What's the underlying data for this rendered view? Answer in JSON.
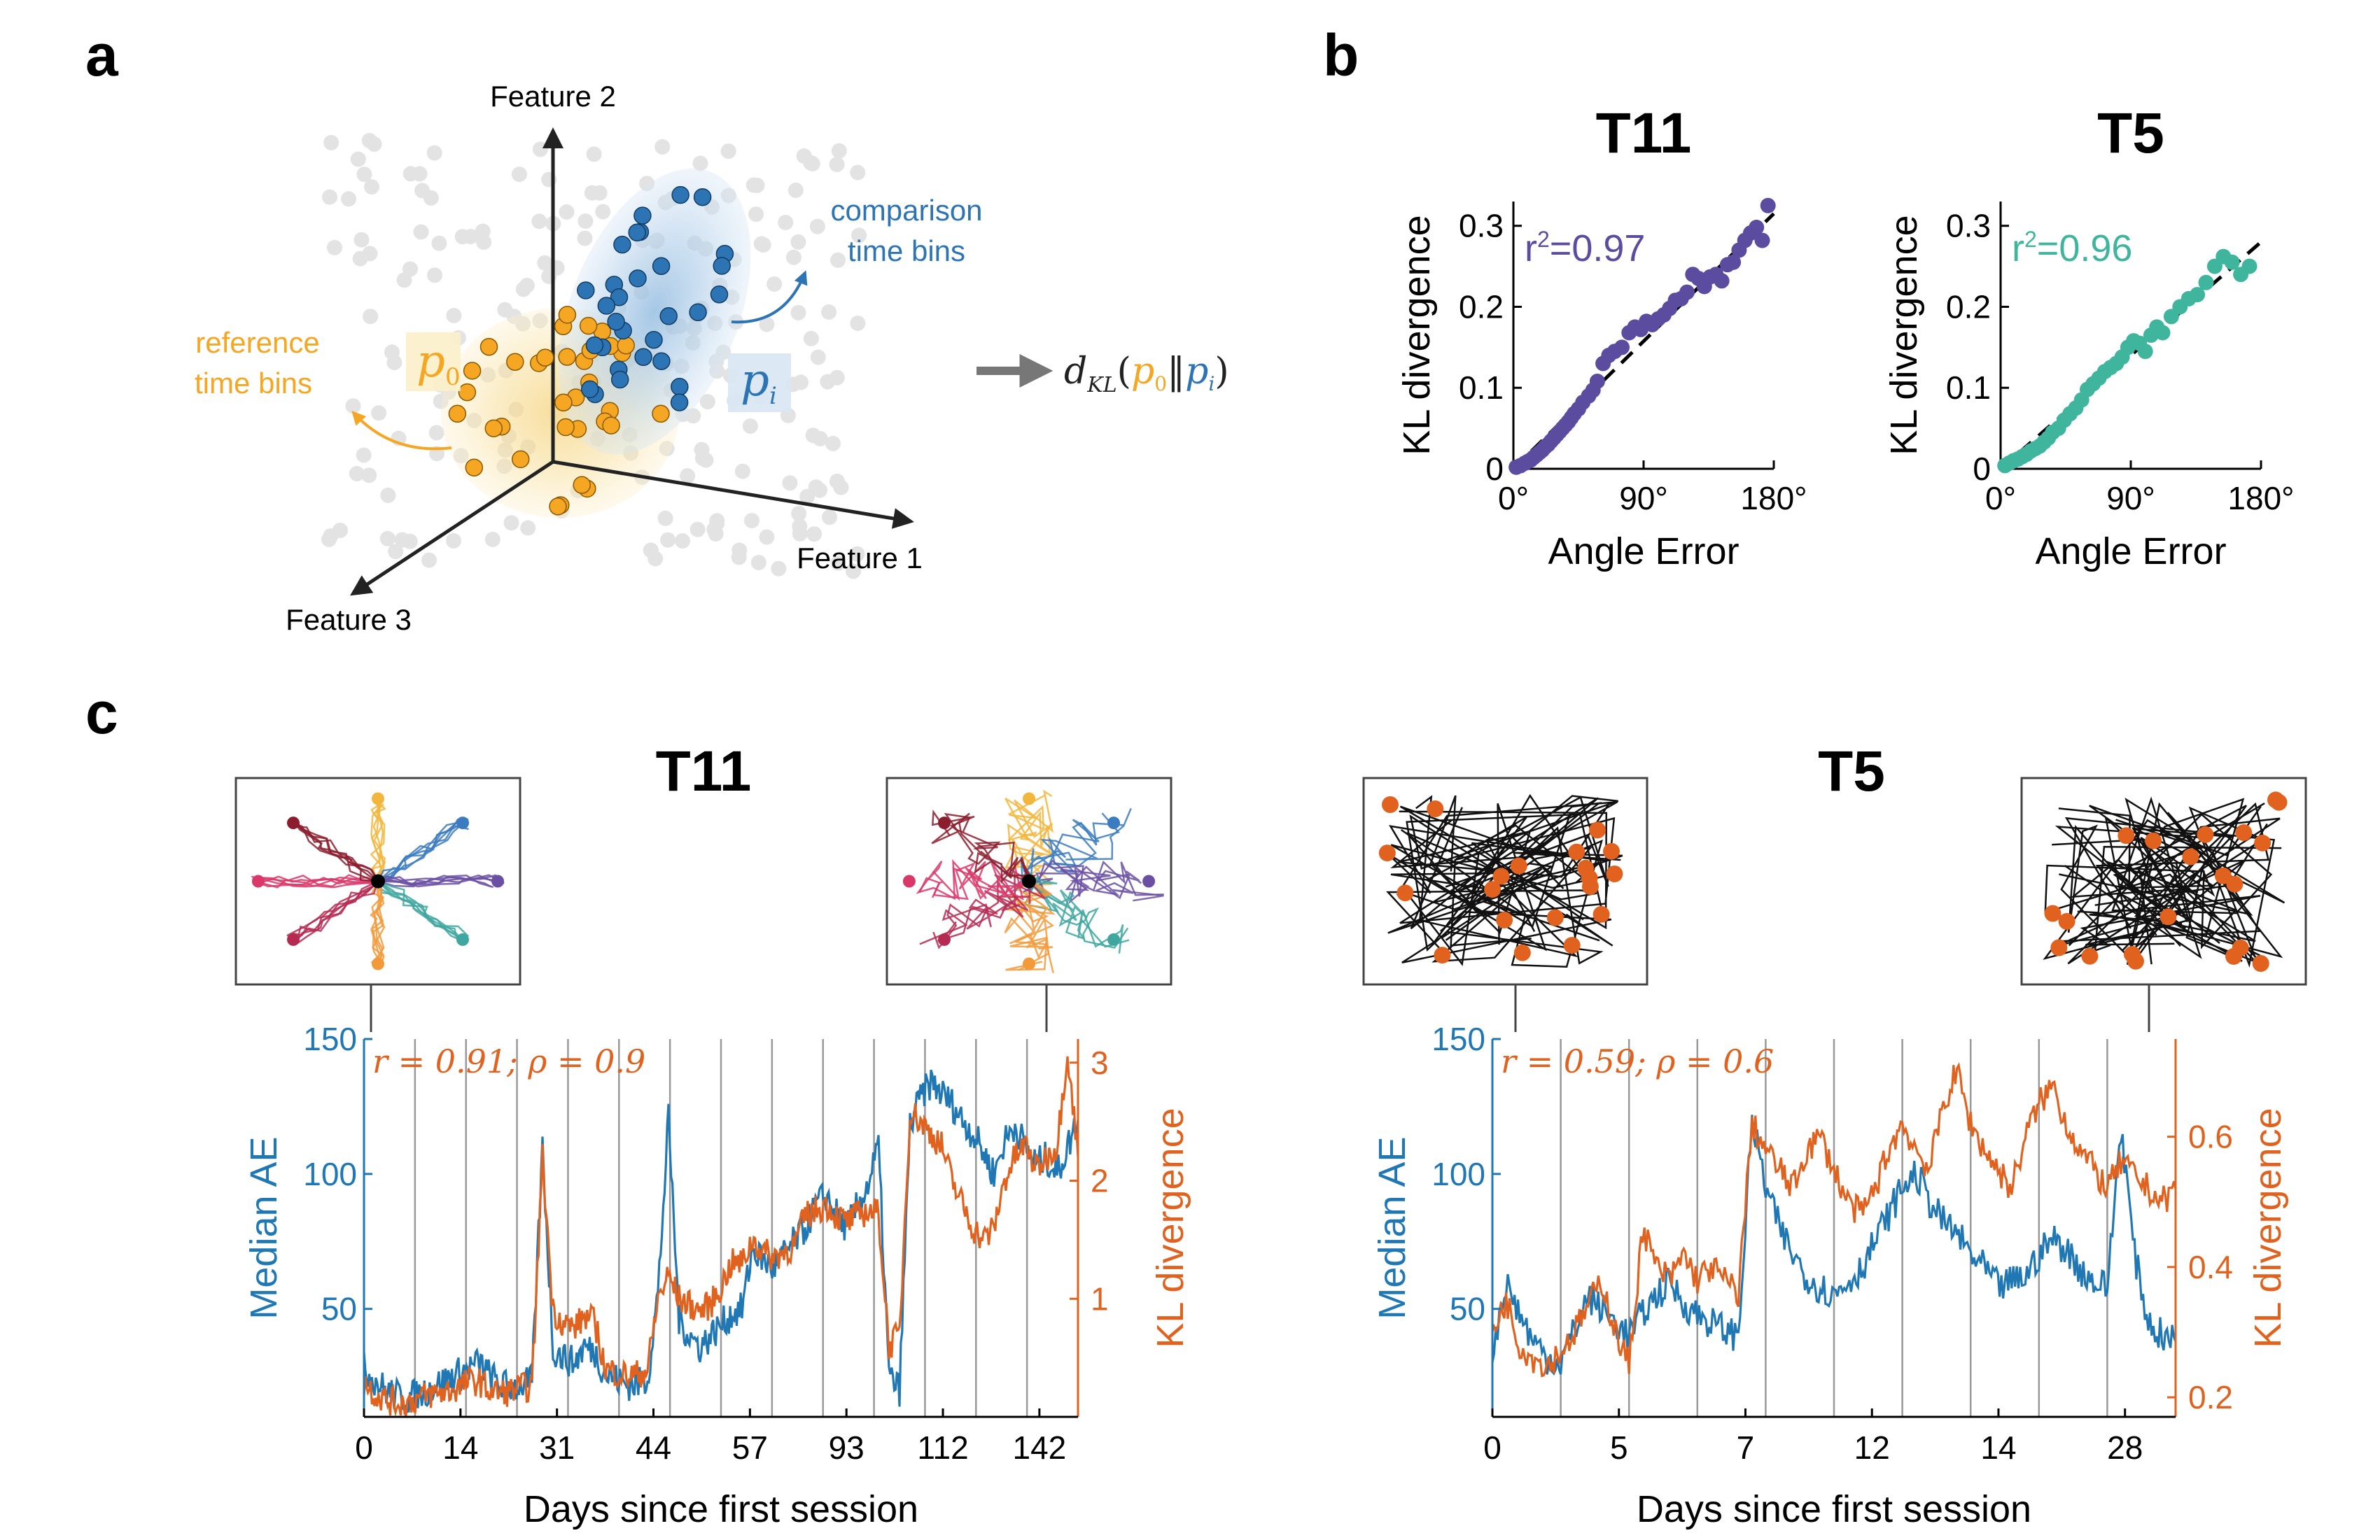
{
  "panel_labels": {
    "a": "a",
    "b": "b",
    "c": "c"
  },
  "panel_a": {
    "feature_1": "Feature 1",
    "feature_2": "Feature 2",
    "feature_3": "Feature 3",
    "reference_line1": "reference",
    "reference_line2": "time bins",
    "comparison_line1": "comparison",
    "comparison_line2": "time bins",
    "p0_symbol": "p",
    "p0_subscript": "0",
    "pi_symbol": "p",
    "pi_subscript": "i",
    "formula": {
      "d": "d",
      "sub": "KL",
      "open": "(",
      "p0": "p",
      "p0_sub": "0",
      "sep": "‖",
      "pi": "p",
      "pi_sub": "i",
      "close": ")"
    },
    "colors": {
      "reference": "#F5A623",
      "comparison": "#2D74B5",
      "background": "#E3E3E3",
      "arrow": "#777777"
    }
  },
  "chart_data": [
    {
      "type": "scatter",
      "panel": "b",
      "title": "T11",
      "xlabel": "Angle Error",
      "ylabel": "KL divergence",
      "xlim": [
        0,
        180
      ],
      "ylim": [
        0,
        0.33
      ],
      "xticks": [
        "0°",
        "90°",
        "180°"
      ],
      "yticks": [
        "0",
        "0.1",
        "0.2",
        "0.3"
      ],
      "annotation": {
        "prefix": "r",
        "sup": "2",
        "value": "=0.97"
      },
      "color": "#5B4CA0",
      "fit_line": {
        "x": [
          0,
          180
        ],
        "y": [
          0,
          0.315
        ]
      },
      "x": [
        2,
        5,
        8,
        10,
        12,
        14,
        16,
        18,
        20,
        22,
        24,
        26,
        28,
        30,
        32,
        34,
        36,
        38,
        40,
        42,
        45,
        48,
        52,
        55,
        58,
        62,
        66,
        70,
        75,
        80,
        84,
        88,
        92,
        96,
        100,
        104,
        108,
        112,
        116,
        120,
        124,
        128,
        132,
        136,
        140,
        144,
        148,
        152,
        156,
        160,
        164,
        168,
        172,
        176
      ],
      "y": [
        0.002,
        0.004,
        0.007,
        0.009,
        0.011,
        0.014,
        0.017,
        0.02,
        0.023,
        0.027,
        0.03,
        0.034,
        0.038,
        0.042,
        0.046,
        0.05,
        0.054,
        0.058,
        0.063,
        0.068,
        0.074,
        0.082,
        0.09,
        0.097,
        0.108,
        0.13,
        0.14,
        0.145,
        0.15,
        0.168,
        0.175,
        0.172,
        0.182,
        0.178,
        0.185,
        0.19,
        0.198,
        0.208,
        0.21,
        0.218,
        0.24,
        0.235,
        0.225,
        0.237,
        0.24,
        0.232,
        0.252,
        0.255,
        0.27,
        0.282,
        0.291,
        0.298,
        0.282,
        0.325
      ]
    },
    {
      "type": "scatter",
      "panel": "b",
      "title": "T5",
      "xlabel": "Angle Error",
      "ylabel": "KL divergence",
      "xlim": [
        0,
        180
      ],
      "ylim": [
        0,
        0.33
      ],
      "xticks": [
        "0°",
        "90°",
        "180°"
      ],
      "yticks": [
        "0",
        "0.1",
        "0.2",
        "0.3"
      ],
      "annotation": {
        "prefix": "r",
        "sup": "2",
        "value": "=0.96"
      },
      "color": "#3FB59E",
      "fit_line": {
        "x": [
          0,
          180
        ],
        "y": [
          0,
          0.28
        ]
      },
      "x": [
        3,
        6,
        9,
        12,
        15,
        18,
        21,
        24,
        27,
        30,
        33,
        36,
        40,
        44,
        48,
        52,
        56,
        60,
        64,
        68,
        72,
        76,
        80,
        84,
        88,
        92,
        96,
        100,
        104,
        108,
        112,
        118,
        124,
        130,
        136,
        142,
        148,
        154,
        160,
        166,
        172
      ],
      "y": [
        0.004,
        0.007,
        0.01,
        0.012,
        0.015,
        0.018,
        0.022,
        0.025,
        0.028,
        0.033,
        0.038,
        0.045,
        0.05,
        0.06,
        0.068,
        0.075,
        0.085,
        0.098,
        0.105,
        0.112,
        0.12,
        0.125,
        0.13,
        0.138,
        0.15,
        0.158,
        0.155,
        0.145,
        0.165,
        0.175,
        0.168,
        0.188,
        0.2,
        0.21,
        0.215,
        0.23,
        0.25,
        0.262,
        0.255,
        0.24,
        0.25
      ]
    },
    {
      "type": "line",
      "panel": "c",
      "title": "T11",
      "xlabel": "Days since first session",
      "ylabel_left": "Median AE",
      "ylabel_right": "KL divergence",
      "xticks": [
        "0",
        "14",
        "31",
        "44",
        "57",
        "93",
        "112",
        "142"
      ],
      "yticks_left": [
        "50",
        "100",
        "150"
      ],
      "yticks_right": [
        "1",
        "2",
        "3"
      ],
      "ylim_left": [
        10,
        150
      ],
      "ylim_right": [
        0,
        3.2
      ],
      "annotation": "r = 0.91; ρ = 0.9",
      "session_count": 14,
      "series": [
        {
          "name": "Median AE",
          "color": "#1F77B4",
          "values": [
            28,
            24,
            20,
            18,
            17,
            18,
            20,
            22,
            24,
            26,
            28,
            30,
            25,
            22,
            21,
            22,
            23,
            110,
            35,
            32,
            30,
            36,
            34,
            26,
            24,
            22,
            22,
            24,
            56,
            120,
            46,
            40,
            36,
            40,
            44,
            48,
            50,
            72,
            68,
            65,
            70,
            75,
            80,
            88,
            92,
            85,
            80,
            88,
            96,
            110,
            25,
            20,
            118,
            128,
            134,
            130,
            126,
            120,
            115,
            108,
            100,
            112,
            118,
            110,
            104,
            106,
            100,
            110,
            120
          ]
        },
        {
          "name": "KL divergence",
          "color": "#E0621E",
          "values": [
            0.3,
            0.2,
            0.15,
            0.12,
            0.12,
            0.15,
            0.18,
            0.2,
            0.22,
            0.25,
            0.3,
            0.3,
            0.22,
            0.2,
            0.22,
            0.25,
            0.25,
            2.2,
            0.9,
            0.8,
            0.75,
            0.85,
            0.8,
            0.4,
            0.38,
            0.35,
            0.36,
            0.4,
            1.0,
            1.2,
            1.0,
            0.95,
            0.9,
            0.95,
            1.1,
            1.3,
            1.3,
            1.5,
            1.4,
            1.35,
            1.4,
            1.45,
            1.7,
            1.75,
            1.8,
            1.7,
            1.65,
            1.7,
            1.75,
            1.72,
            0.6,
            0.7,
            2.6,
            2.5,
            2.4,
            2.3,
            2.0,
            1.8,
            1.6,
            1.5,
            1.6,
            2.0,
            2.2,
            2.3,
            2.1,
            2.2,
            2.3,
            3.1,
            2.2
          ]
        }
      ],
      "insets": [
        {
          "type": "radial",
          "colors": [
            "#F2B63D",
            "#3B7BBF",
            "#6A4FA3",
            "#3FA7A0",
            "#F29A3A",
            "#B52A52",
            "#D9386A",
            "#8C1D2E"
          ]
        },
        {
          "type": "radial-noisy",
          "colors": [
            "#F2B63D",
            "#3B7BBF",
            "#6A4FA3",
            "#3FA7A0",
            "#F29A3A",
            "#B52A52",
            "#D9386A",
            "#8C1D2E"
          ]
        }
      ]
    },
    {
      "type": "line",
      "panel": "c",
      "title": "T5",
      "xlabel": "Days since first session",
      "ylabel_left": "Median AE",
      "ylabel_right": "KL divergence",
      "xticks": [
        "0",
        "5",
        "7",
        "12",
        "14",
        "28"
      ],
      "yticks_left": [
        "50",
        "100",
        "150"
      ],
      "yticks_right": [
        "0.2",
        "0.4",
        "0.6"
      ],
      "ylim_left": [
        10,
        150
      ],
      "ylim_right": [
        0.17,
        0.75
      ],
      "annotation": "r = 0.59; ρ = 0.6",
      "session_count": 10,
      "series": [
        {
          "name": "Median AE",
          "color": "#1F77B4",
          "values": [
            35,
            60,
            48,
            38,
            32,
            30,
            42,
            55,
            50,
            45,
            40,
            48,
            55,
            60,
            52,
            48,
            45,
            42,
            40,
            120,
            95,
            80,
            70,
            62,
            58,
            55,
            60,
            65,
            75,
            85,
            95,
            100,
            90,
            82,
            78,
            70,
            65,
            58,
            60,
            62,
            70,
            76,
            72,
            65,
            60,
            58,
            118,
            70,
            45,
            40,
            38
          ]
        },
        {
          "name": "KL divergence",
          "color": "#E0621E",
          "values": [
            0.3,
            0.35,
            0.28,
            0.26,
            0.25,
            0.27,
            0.3,
            0.34,
            0.38,
            0.3,
            0.25,
            0.46,
            0.4,
            0.38,
            0.42,
            0.38,
            0.4,
            0.38,
            0.36,
            0.62,
            0.58,
            0.55,
            0.52,
            0.58,
            0.6,
            0.55,
            0.5,
            0.48,
            0.52,
            0.58,
            0.62,
            0.58,
            0.55,
            0.65,
            0.7,
            0.62,
            0.58,
            0.55,
            0.52,
            0.6,
            0.65,
            0.68,
            0.62,
            0.58,
            0.55,
            0.52,
            0.56,
            0.54,
            0.52,
            0.5,
            0.52
          ]
        }
      ],
      "insets": [
        {
          "type": "scatter-paths",
          "dot_color": "#E0621E"
        },
        {
          "type": "grid-paths",
          "dot_color": "#E0621E"
        }
      ]
    }
  ]
}
